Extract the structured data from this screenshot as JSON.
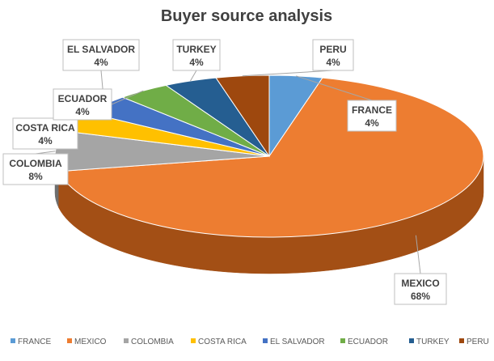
{
  "chart_data": {
    "type": "pie",
    "style": "3d-pie",
    "title": "Buyer source analysis",
    "categories": [
      "FRANCE",
      "MEXICO",
      "COLOMBIA",
      "COSTA RICA",
      "EL SALVADOR",
      "ECUADOR",
      "TURKEY",
      "PERU"
    ],
    "values": [
      4,
      68,
      8,
      4,
      4,
      4,
      4,
      4
    ],
    "data_labels": [
      "4%",
      "68%",
      "8%",
      "4%",
      "4%",
      "4%",
      "4%",
      "4%"
    ],
    "colors": [
      "#5b9bd5",
      "#ed7d31",
      "#a5a5a5",
      "#ffc000",
      "#4472c4",
      "#70ad47",
      "#255e91",
      "#9e480e"
    ],
    "side_colors": [
      "#3d6f9c",
      "#a34f15",
      "#6e6e6e",
      "#b38600",
      "#2d4d87",
      "#4b7830",
      "#163a5c",
      "#5e2a07"
    ],
    "legend_position": "bottom",
    "unit": "%"
  }
}
